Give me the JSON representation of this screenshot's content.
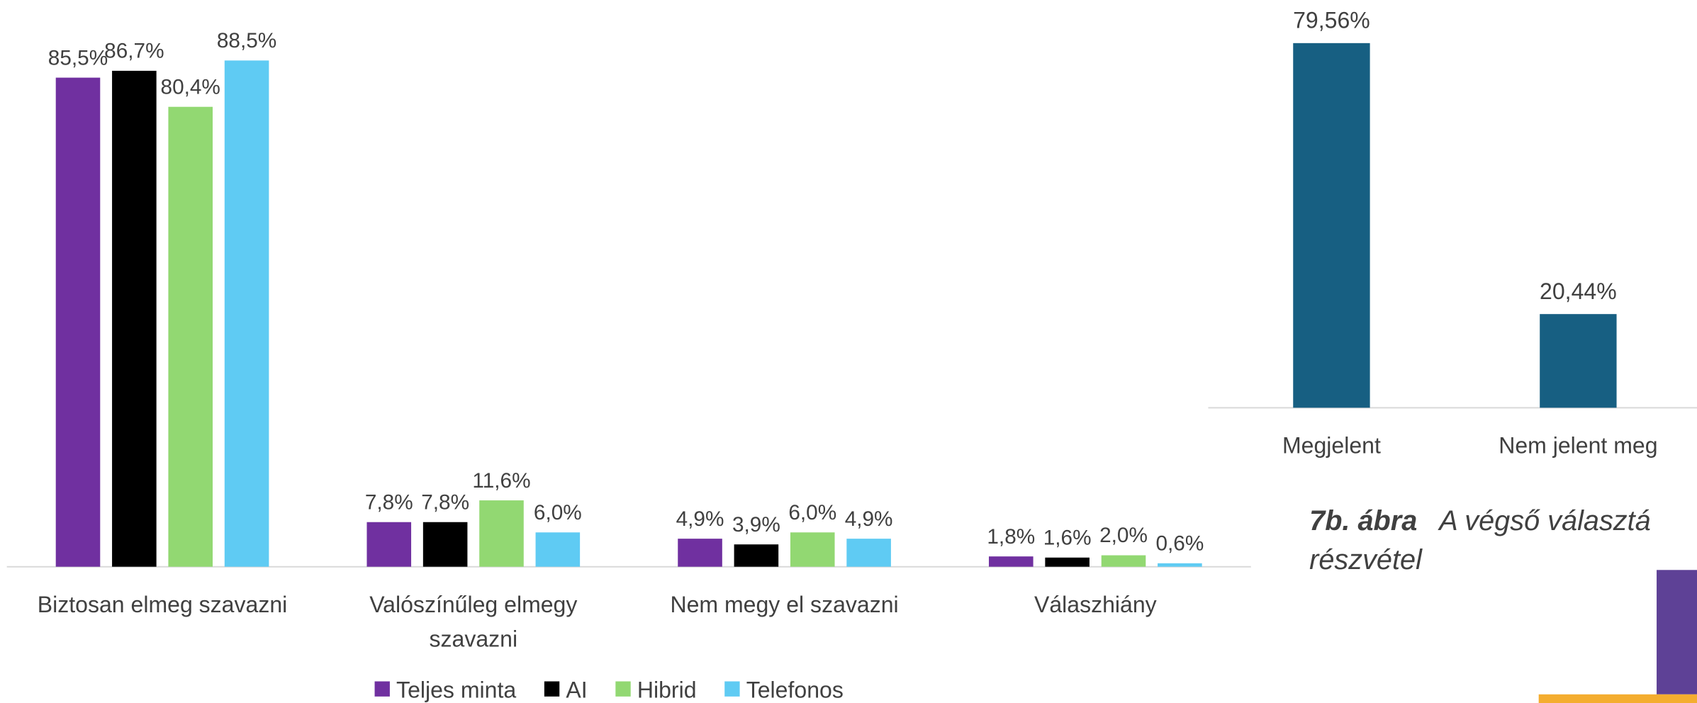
{
  "chart_data": [
    {
      "type": "bar",
      "categories": [
        "Biztosan elmeg szavazni",
        "Valószínűleg elmegy szavazni",
        "Nem megy el szavazni",
        "Válaszhiány"
      ],
      "series": [
        {
          "name": "Teljes minta",
          "color": "#7030a0",
          "values": [
            85.5,
            7.8,
            4.9,
            1.8
          ],
          "value_labels": [
            "85,5%",
            "7,8%",
            "4,9%",
            "1,8%"
          ]
        },
        {
          "name": "AI",
          "color": "#000000",
          "values": [
            86.7,
            7.8,
            3.9,
            1.6
          ],
          "value_labels": [
            "86,7%",
            "7,8%",
            "3,9%",
            "1,6%"
          ]
        },
        {
          "name": "Hibrid",
          "color": "#92d872",
          "values": [
            80.4,
            11.6,
            6.0,
            2.0
          ],
          "value_labels": [
            "80,4%",
            "11,6%",
            "6,0%",
            "2,0%"
          ]
        },
        {
          "name": "Telefonos",
          "color": "#5fcbf3",
          "values": [
            88.5,
            6.0,
            4.9,
            0.6
          ],
          "value_labels": [
            "88,5%",
            "6,0%",
            "4,9%",
            "0,6%"
          ]
        }
      ],
      "ylim": [
        0,
        90
      ],
      "legend": "bottom"
    },
    {
      "type": "bar",
      "categories": [
        "Megjelent",
        "Nem jelent meg"
      ],
      "values": [
        79.56,
        20.44
      ],
      "value_labels": [
        "79,56%",
        "20,44%"
      ],
      "color": "#175f82",
      "ylim": [
        0,
        80
      ]
    }
  ],
  "caption": {
    "number": "7b. ábra",
    "text": "A végső választá",
    "text2": "részvétel"
  }
}
